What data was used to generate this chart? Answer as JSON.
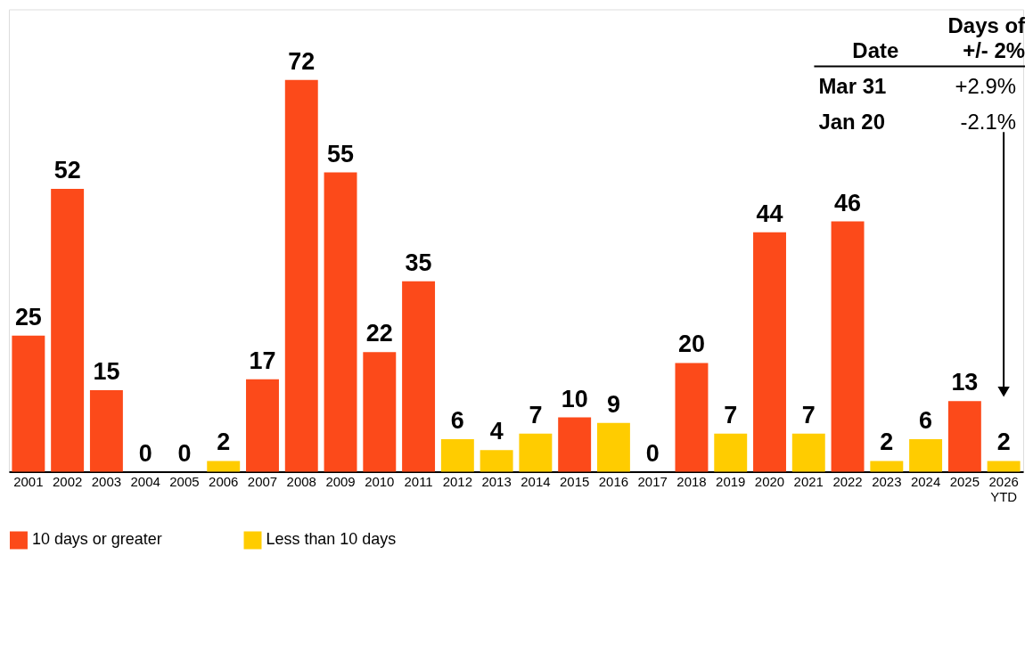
{
  "chart_data": {
    "type": "bar",
    "categories": [
      "2001",
      "2002",
      "2003",
      "2004",
      "2005",
      "2006",
      "2007",
      "2008",
      "2009",
      "2010",
      "2011",
      "2012",
      "2013",
      "2014",
      "2015",
      "2016",
      "2017",
      "2018",
      "2019",
      "2020",
      "2021",
      "2022",
      "2023",
      "2024",
      "2025",
      "2026 YTD"
    ],
    "series": [
      {
        "name": "10 days or greater",
        "color": "#fc4a1a",
        "values": [
          25,
          52,
          15,
          null,
          null,
          null,
          17,
          72,
          55,
          22,
          35,
          null,
          null,
          null,
          10,
          null,
          null,
          20,
          null,
          44,
          null,
          46,
          null,
          null,
          13,
          null
        ]
      },
      {
        "name": "Less than 10 days",
        "color": "#ffcc00",
        "values": [
          null,
          null,
          null,
          0,
          0,
          2,
          null,
          null,
          null,
          null,
          null,
          6,
          4,
          7,
          null,
          9,
          0,
          null,
          7,
          null,
          7,
          null,
          2,
          6,
          null,
          2
        ]
      }
    ],
    "data_labels": true,
    "legend": "bottom",
    "grid": false,
    "annotations": [
      "Date",
      "Days of",
      "+/- 2%",
      "Mar 31",
      "+2.9%",
      "Jan 20",
      "-2.1%"
    ]
  }
}
